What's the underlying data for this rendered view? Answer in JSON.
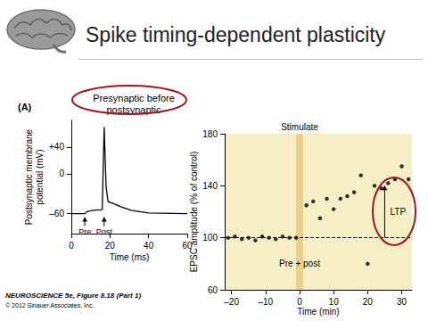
{
  "slide": {
    "title": "Spike timing-dependent plasticity",
    "panel_label": "(A)",
    "caption": "NEUROSCIENCE 5e, Figure 8.18 (Part 1)",
    "copyright": "© 2012 Sinauer Associates, Inc."
  },
  "chart_data": [
    {
      "type": "line",
      "title": "Presynaptic before postsynaptic",
      "x": [
        0,
        7,
        8,
        11,
        16,
        17,
        18,
        19,
        21,
        26,
        31,
        40,
        60
      ],
      "values": [
        -60,
        -60,
        -57,
        -55,
        -54,
        70,
        -20,
        -42,
        -44,
        -50,
        -55,
        -59,
        -60
      ],
      "color": "#000000",
      "xlabel": "Time (ms)",
      "ylabel": "Postsynaptic membrane potential (mV)",
      "xlim": [
        0,
        60
      ],
      "ylim": [
        -90,
        80
      ],
      "xticks": [
        0,
        20,
        40,
        60
      ],
      "yticks": [
        {
          "value": 40,
          "label": "+40"
        },
        0,
        {
          "value": -60,
          "label": "–60"
        }
      ],
      "annotations": [
        {
          "text": "Pre",
          "x": 7,
          "y": -60
        },
        {
          "text": "Post",
          "x": 17,
          "y": -60
        }
      ]
    },
    {
      "type": "scatter",
      "x": [
        -21,
        -19,
        -17,
        -15,
        -13,
        -11,
        -9,
        -7,
        -5,
        -3,
        -1,
        2,
        4,
        6,
        8,
        10,
        12,
        14,
        16,
        18,
        20,
        22,
        24,
        26,
        28,
        30,
        32
      ],
      "values": [
        100,
        101,
        99,
        100,
        98,
        101,
        100,
        99,
        101,
        100,
        100,
        125,
        128,
        115,
        130,
        122,
        130,
        132,
        135,
        148,
        80,
        140,
        138,
        142,
        145,
        155,
        145
      ],
      "color": "#000000",
      "xlabel": "Time (min)",
      "ylabel": "EPSC amplitude (% of control)",
      "xlim": [
        -22,
        33
      ],
      "ylim": [
        60,
        180
      ],
      "xticks": [
        {
          "value": -20,
          "label": "–20"
        },
        {
          "value": -10,
          "label": "–10"
        },
        0,
        10,
        20,
        30
      ],
      "yticks": [
        60,
        100,
        140,
        180
      ],
      "reference_line": 100,
      "event": {
        "label": "Stimulate",
        "x": 0
      },
      "annotations": [
        {
          "text": "Pre + post",
          "x": 0,
          "y": 100
        },
        {
          "text": "LTP",
          "x": 25,
          "y": [
            100,
            140
          ]
        }
      ]
    }
  ]
}
